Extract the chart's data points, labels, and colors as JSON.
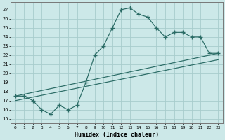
{
  "xlabel": "Humidex (Indice chaleur)",
  "xlim": [
    -0.5,
    23.5
  ],
  "ylim": [
    14.5,
    27.8
  ],
  "xticks": [
    0,
    1,
    2,
    3,
    4,
    5,
    6,
    7,
    8,
    9,
    10,
    11,
    12,
    13,
    14,
    15,
    16,
    17,
    18,
    19,
    20,
    21,
    22,
    23
  ],
  "yticks": [
    15,
    16,
    17,
    18,
    19,
    20,
    21,
    22,
    23,
    24,
    25,
    26,
    27
  ],
  "bg_color": "#cce8e8",
  "line_color": "#2a6b65",
  "grid_color": "#a8cccc",
  "main_x": [
    0,
    1,
    2,
    3,
    4,
    5,
    6,
    7,
    8,
    9,
    10,
    11,
    12,
    13,
    14,
    15,
    16,
    17,
    18,
    19,
    20,
    21,
    22,
    23
  ],
  "main_y": [
    17.5,
    17.5,
    17.0,
    16.0,
    15.5,
    16.5,
    16.0,
    16.5,
    19.0,
    22.0,
    23.0,
    25.0,
    27.0,
    27.2,
    26.5,
    26.2,
    25.0,
    24.0,
    24.5,
    24.5,
    24.0,
    24.0,
    22.2,
    22.2
  ],
  "trend1_x": [
    0,
    23
  ],
  "trend1_y": [
    17.5,
    22.2
  ],
  "trend2_x": [
    0,
    23
  ],
  "trend2_y": [
    17.0,
    21.5
  ]
}
